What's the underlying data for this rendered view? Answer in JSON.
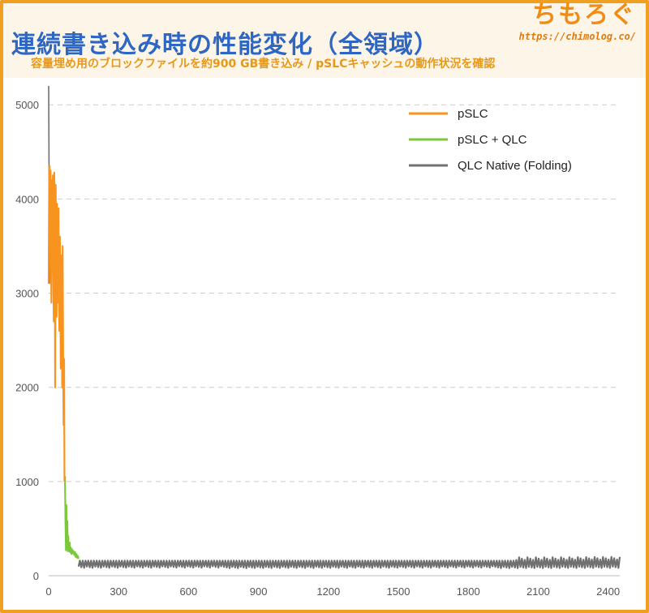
{
  "header": {
    "title": "連続書き込み時の性能変化（全領域）",
    "subtitle": "容量埋め用のブロックファイルを約900 GB書き込み / pSLCキャッシュの動作状況を確認",
    "brand_name": "ちもろぐ",
    "brand_url": "https://chimolog.co/"
  },
  "colors": {
    "pslc": "#f7931e",
    "pslc_qlc": "#7cc83c",
    "qlc_native": "#707070",
    "grid": "#cccccc"
  },
  "chart_data": {
    "type": "line",
    "title": "連続書き込み時の性能変化（全領域）",
    "xlabel": "",
    "ylabel": "",
    "xlim": [
      0,
      2450
    ],
    "ylim": [
      0,
      5200
    ],
    "xticks": [
      0,
      300,
      600,
      900,
      1200,
      1500,
      1800,
      2100,
      2400
    ],
    "yticks": [
      0,
      1000,
      2000,
      3000,
      4000,
      5000
    ],
    "grid": "horizontal-dashed",
    "legend_position": "top-right",
    "series": [
      {
        "name": "pSLC",
        "color": "#f7931e",
        "x": [
          0,
          2,
          4,
          6,
          8,
          10,
          12,
          14,
          16,
          18,
          20,
          22,
          24,
          26,
          28,
          30,
          32,
          34,
          36,
          38,
          40,
          42,
          44,
          46,
          48,
          50,
          52,
          54,
          56,
          58,
          60,
          62,
          64,
          66,
          68
        ],
        "y": [
          3100,
          4150,
          4350,
          3700,
          4300,
          3400,
          2900,
          4200,
          3900,
          4250,
          3300,
          2700,
          4280,
          3800,
          2000,
          4150,
          3500,
          2750,
          3950,
          3300,
          2900,
          3900,
          3100,
          2600,
          3600,
          3000,
          2200,
          3400,
          2800,
          2000,
          3500,
          2400,
          1600,
          2300,
          1000
        ]
      },
      {
        "name": "pSLC + QLC",
        "color": "#7cc83c",
        "x": [
          68,
          70,
          72,
          74,
          76,
          78,
          80,
          82,
          84,
          86,
          88,
          90,
          92,
          95,
          98,
          101,
          104,
          107,
          110,
          113,
          116,
          119,
          122,
          125,
          128
        ],
        "y": [
          1000,
          1050,
          600,
          270,
          750,
          300,
          580,
          260,
          420,
          300,
          260,
          350,
          250,
          300,
          230,
          280,
          240,
          260,
          220,
          250,
          200,
          230,
          190,
          210,
          180
        ]
      },
      {
        "name": "QLC Native (Folding)",
        "color": "#707070",
        "x_start": 128,
        "x_end": 2450,
        "period": 12,
        "low": 80,
        "high": 160,
        "x": [
          0,
          2,
          4
        ],
        "y": [
          5200,
          4000,
          3100
        ]
      }
    ]
  }
}
